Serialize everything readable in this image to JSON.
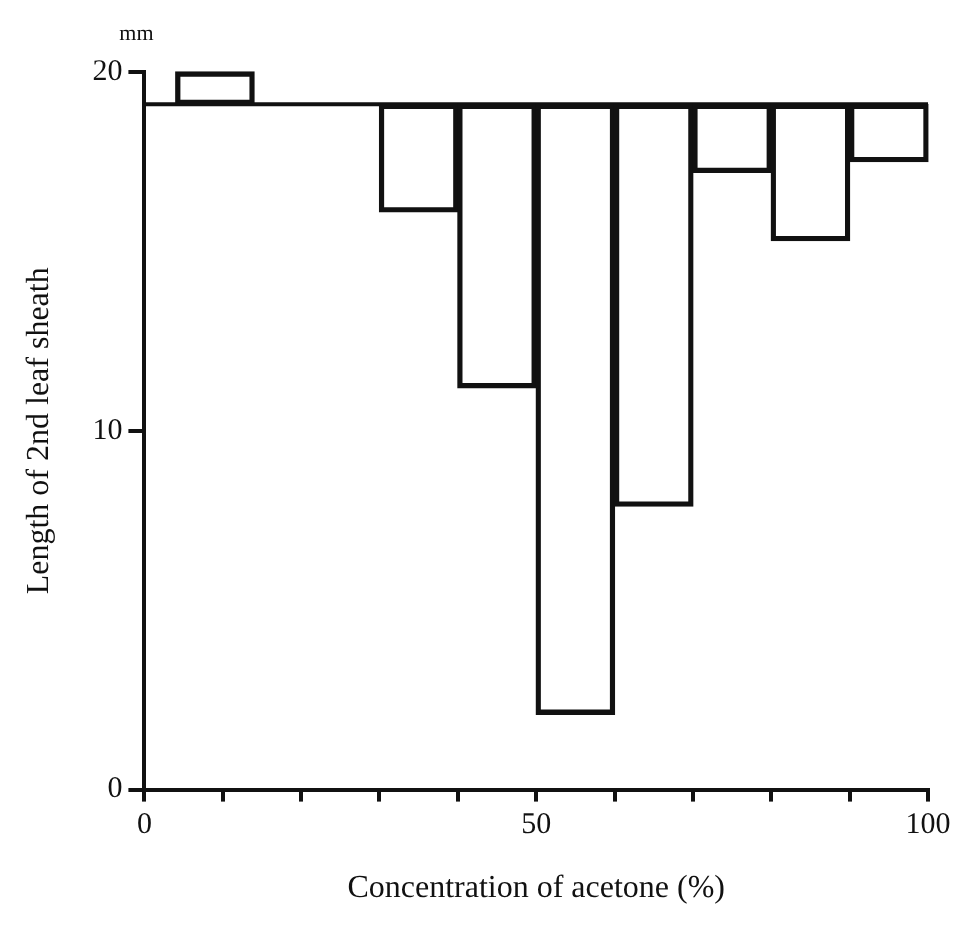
{
  "chart_data": {
    "type": "bar",
    "xlabel": "Concentration of acetone (%)",
    "ylabel": "Length of 2nd leaf sheath",
    "annotations": [
      "mm"
    ],
    "x": [
      9,
      35,
      45,
      55,
      65,
      75,
      85,
      95
    ],
    "values": [
      0.9,
      -3.0,
      -7.9,
      -17.0,
      -11.2,
      -1.9,
      -3.8,
      -1.6
    ],
    "base": [
      19.1,
      19.1,
      19.1,
      19.1,
      19.1,
      19.1,
      19.1,
      19.1
    ],
    "color": "#111111",
    "ref_lines": [
      {
        "axis": "y",
        "value": 19.1,
        "color": "#111111"
      }
    ],
    "xlim": [
      0,
      100
    ],
    "xticks": [
      0,
      {
        "value": 10,
        "label": null
      },
      {
        "value": 20,
        "label": null
      },
      {
        "value": 30,
        "label": null
      },
      {
        "value": 40,
        "label": null
      },
      50,
      {
        "value": 60,
        "label": null
      },
      {
        "value": 70,
        "label": null
      },
      {
        "value": 80,
        "label": null
      },
      {
        "value": 90,
        "label": null
      },
      100
    ],
    "ylim": [
      0,
      20
    ],
    "yticks": [
      0,
      10,
      20
    ],
    "grid": false,
    "legend": false
  }
}
